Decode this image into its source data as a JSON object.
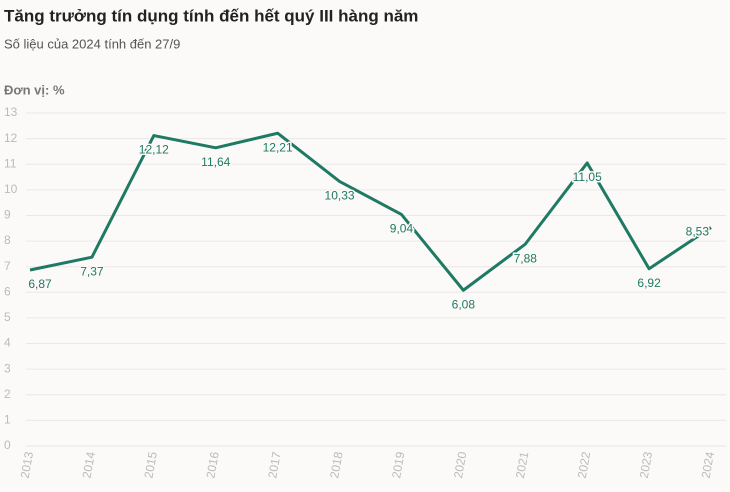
{
  "chart_data": {
    "type": "line",
    "title": "Tăng trưởng tín dụng tính đến hết quý III hàng năm",
    "subtitle": "Số liệu của 2024 tính đến 27/9",
    "unit_label": "Đơn vị: %",
    "categories": [
      "2013",
      "2014",
      "2015",
      "2016",
      "2017",
      "2018",
      "2019",
      "2020",
      "2021",
      "2022",
      "2023",
      "2024"
    ],
    "series": [
      {
        "name": "Tăng trưởng tín dụng",
        "color": "#1f7a63",
        "values": [
          6.87,
          7.37,
          12.12,
          11.64,
          12.21,
          10.33,
          9.04,
          6.08,
          7.88,
          11.05,
          6.92,
          8.53
        ],
        "value_labels": [
          "6,87",
          "7,37",
          "12,12",
          "11,64",
          "12,21",
          "10,33",
          "9,04",
          "6,08",
          "7,88",
          "11,05",
          "6,92",
          "8,53"
        ]
      }
    ],
    "ylim": [
      0,
      13
    ],
    "yticks": [
      0,
      1,
      2,
      3,
      4,
      5,
      6,
      7,
      8,
      9,
      10,
      11,
      12,
      13
    ],
    "grid": true
  }
}
